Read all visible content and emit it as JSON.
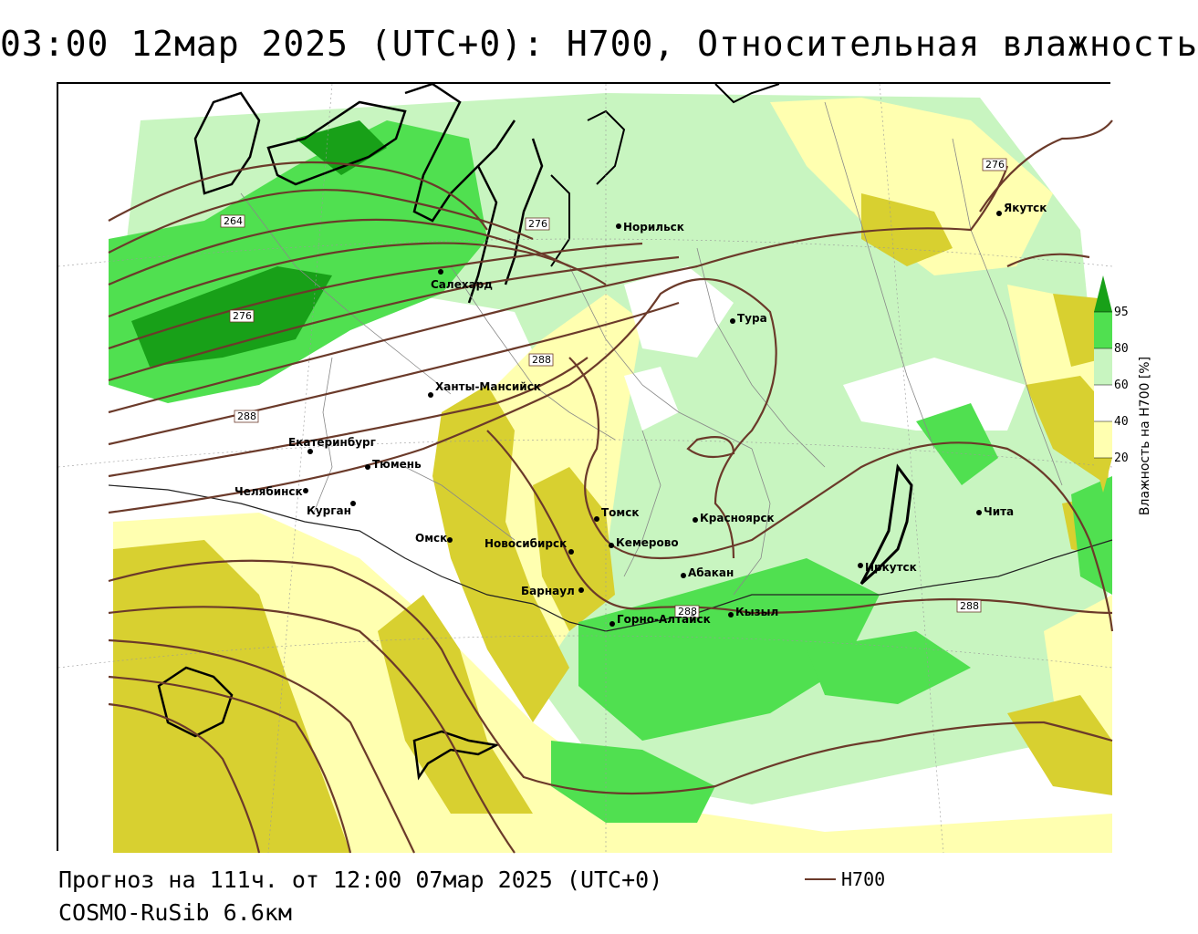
{
  "title": "03:00 12мар 2025 (UTC+0): H700, Относительная влажность",
  "footer": {
    "forecast": "Прогноз на 111ч. от 12:00 07мар 2025 (UTC+0)",
    "model": "COSMO-RuSib 6.6км"
  },
  "legend": {
    "line_label": "H700",
    "line_color": "#6b3a2a"
  },
  "colorbar": {
    "label": "Влажность на Н700 [%]",
    "ticks": [
      "95",
      "80",
      "60",
      "40",
      "20"
    ],
    "colors": {
      "very_dry": "#d8d030",
      "dry": "#ffffb0",
      "neutral": "#ffffff",
      "moist": "#c8f5c0",
      "wet": "#50e050",
      "very_wet": "#18a018"
    }
  },
  "cities": [
    {
      "name": "Норильск"
    },
    {
      "name": "Якутск"
    },
    {
      "name": "Салехард"
    },
    {
      "name": "Тура"
    },
    {
      "name": "Ханты-Мансийск"
    },
    {
      "name": "Екатеринбург"
    },
    {
      "name": "Тюмень"
    },
    {
      "name": "Челябинск"
    },
    {
      "name": "Курган"
    },
    {
      "name": "Омск"
    },
    {
      "name": "Новосибирск"
    },
    {
      "name": "Томск"
    },
    {
      "name": "Кемерово"
    },
    {
      "name": "Красноярск"
    },
    {
      "name": "Абакан"
    },
    {
      "name": "Барнаул"
    },
    {
      "name": "Горно-Алтайск"
    },
    {
      "name": "Кызыл"
    },
    {
      "name": "Иркутск"
    },
    {
      "name": "Чита"
    }
  ],
  "isolines": [
    {
      "label": "264"
    },
    {
      "label": "276"
    },
    {
      "label": "276"
    },
    {
      "label": "276"
    },
    {
      "label": "288"
    },
    {
      "label": "288"
    },
    {
      "label": "288"
    },
    {
      "label": "288"
    }
  ]
}
